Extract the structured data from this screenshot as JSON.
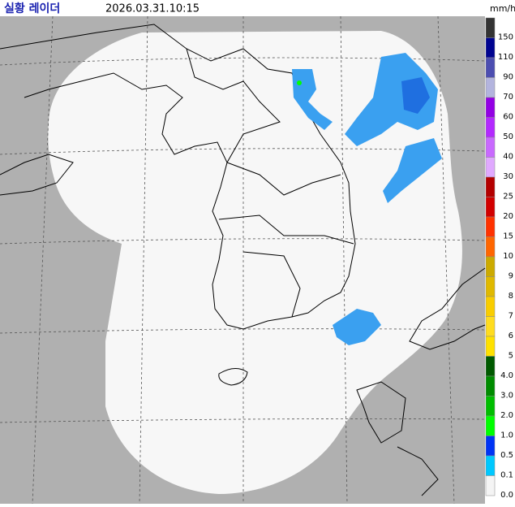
{
  "header": {
    "title": "실황 레이더",
    "time": "2026.03.31.10:15",
    "unit": "mm/h"
  },
  "legend": [
    {
      "label": "150",
      "color": "#333333"
    },
    {
      "label": "110",
      "color": "#000390"
    },
    {
      "label": "90",
      "color": "#4c4eb1"
    },
    {
      "label": "70",
      "color": "#b3b4de"
    },
    {
      "label": "60",
      "color": "#9300e4"
    },
    {
      "label": "50",
      "color": "#b329ff"
    },
    {
      "label": "40",
      "color": "#c969ff"
    },
    {
      "label": "30",
      "color": "#e0a9ff"
    },
    {
      "label": "25",
      "color": "#b40000"
    },
    {
      "label": "20",
      "color": "#d20000"
    },
    {
      "label": "15",
      "color": "#ff3200"
    },
    {
      "label": "10",
      "color": "#ff6600"
    },
    {
      "label": "9",
      "color": "#ccaa00"
    },
    {
      "label": "8",
      "color": "#e0b900"
    },
    {
      "label": "7",
      "color": "#f9cd00"
    },
    {
      "label": "6",
      "color": "#ffdc1f"
    },
    {
      "label": "5",
      "color": "#ffe100"
    },
    {
      "label": "4.0",
      "color": "#005a00"
    },
    {
      "label": "3.0",
      "color": "#008c00"
    },
    {
      "label": "2.0",
      "color": "#00be00"
    },
    {
      "label": "1.0",
      "color": "#00ff00"
    },
    {
      "label": "0.5",
      "color": "#0033f5"
    },
    {
      "label": "0.1",
      "color": "#00c8ff"
    },
    {
      "label": "0.0",
      "color": "#f4f4f4"
    }
  ]
}
